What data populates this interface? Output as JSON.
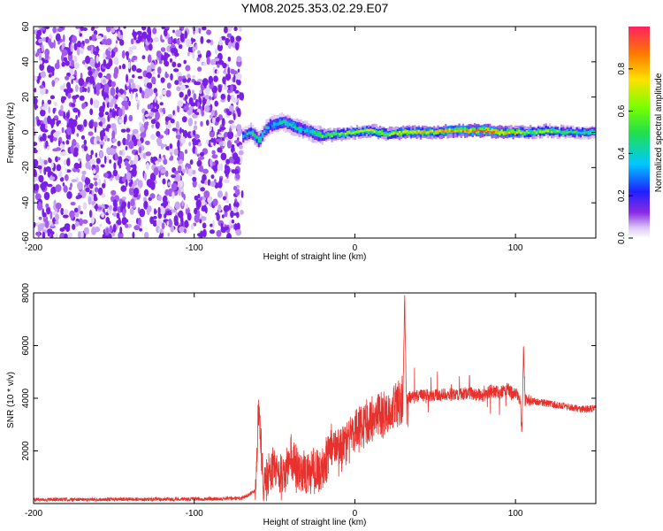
{
  "title": "YM08.2025.353.02.29.E07",
  "chart_data": [
    {
      "type": "heatmap",
      "name": "spectrogram",
      "xlabel": "Height of straight line (km)",
      "ylabel": "Frequency (Hz)",
      "xlim": [
        -200,
        150
      ],
      "ylim": [
        -60,
        60
      ],
      "xticks": [
        -200,
        -100,
        0,
        100
      ],
      "xtick_labels": [
        "-200",
        "-100",
        "0",
        "100"
      ],
      "yticks": [
        -60,
        -40,
        -20,
        0,
        20,
        40,
        60
      ],
      "ytick_labels": [
        "-60",
        "-40",
        "-20",
        "0",
        "20",
        "40",
        "60"
      ],
      "noise_region_km": [
        -200,
        -70
      ],
      "signal_track": [
        {
          "km": -70,
          "hz": -2,
          "amp": 0.3
        },
        {
          "km": -65,
          "hz": 0,
          "amp": 0.4
        },
        {
          "km": -60,
          "hz": -5,
          "amp": 0.45
        },
        {
          "km": -55,
          "hz": 3,
          "amp": 0.35
        },
        {
          "km": -50,
          "hz": 5,
          "amp": 0.4
        },
        {
          "km": -45,
          "hz": 6,
          "amp": 0.45
        },
        {
          "km": -40,
          "hz": 4,
          "amp": 0.4
        },
        {
          "km": -35,
          "hz": 2,
          "amp": 0.45
        },
        {
          "km": -30,
          "hz": 1,
          "amp": 0.4
        },
        {
          "km": -25,
          "hz": -1,
          "amp": 0.45
        },
        {
          "km": -20,
          "hz": -2,
          "amp": 0.5
        },
        {
          "km": -10,
          "hz": -1,
          "amp": 0.55
        },
        {
          "km": 0,
          "hz": 0,
          "amp": 0.6
        },
        {
          "km": 10,
          "hz": 1,
          "amp": 0.65
        },
        {
          "km": 20,
          "hz": -1,
          "amp": 0.6
        },
        {
          "km": 30,
          "hz": 0,
          "amp": 0.7
        },
        {
          "km": 40,
          "hz": 0,
          "amp": 0.75
        },
        {
          "km": 50,
          "hz": 0,
          "amp": 0.7
        },
        {
          "km": 60,
          "hz": 1,
          "amp": 0.8
        },
        {
          "km": 70,
          "hz": 1,
          "amp": 0.85
        },
        {
          "km": 80,
          "hz": 1,
          "amp": 0.95
        },
        {
          "km": 90,
          "hz": 0,
          "amp": 0.8
        },
        {
          "km": 100,
          "hz": 0,
          "amp": 0.7
        },
        {
          "km": 110,
          "hz": 0,
          "amp": 0.55
        },
        {
          "km": 120,
          "hz": 1,
          "amp": 0.6
        },
        {
          "km": 130,
          "hz": 0,
          "amp": 0.5
        },
        {
          "km": 140,
          "hz": 0,
          "amp": 0.45
        },
        {
          "km": 150,
          "hz": 0,
          "amp": 0.45
        }
      ],
      "colorbar": {
        "label": "Normalized spectral amplitude",
        "range": [
          0,
          1
        ],
        "ticks": [
          0.0,
          0.2,
          0.4,
          0.6,
          0.8
        ],
        "tick_labels": [
          "0.0",
          "0.2",
          "0.4",
          "0.6",
          "0.8"
        ]
      }
    },
    {
      "type": "line",
      "name": "snr",
      "xlabel": "Height of straight line (km)",
      "ylabel": "SNR (10 * v/v)",
      "xlim": [
        -200,
        150
      ],
      "ylim": [
        0,
        8000
      ],
      "xticks": [
        -200,
        -100,
        0,
        100
      ],
      "xtick_labels": [
        "-200",
        "-100",
        "0",
        "100"
      ],
      "yticks": [
        2000,
        4000,
        6000,
        8000
      ],
      "ytick_labels": [
        "2000",
        "4000",
        "6000",
        "8000"
      ],
      "series": [
        {
          "name": "SNR",
          "color": "#e8312c",
          "x": [
            -200,
            -150,
            -100,
            -70,
            -62,
            -60,
            -57,
            -55,
            -50,
            -45,
            -40,
            -35,
            -30,
            -25,
            -20,
            -15,
            -10,
            -5,
            0,
            5,
            10,
            15,
            20,
            25,
            28,
            30,
            31,
            32,
            35,
            40,
            50,
            60,
            70,
            80,
            85,
            90,
            95,
            100,
            103,
            104,
            105,
            106,
            110,
            120,
            130,
            140,
            150
          ],
          "y": [
            150,
            160,
            170,
            200,
            500,
            3700,
            700,
            1000,
            1300,
            900,
            1800,
            1200,
            1100,
            1300,
            1200,
            2200,
            1900,
            2300,
            2700,
            3000,
            3100,
            3300,
            3400,
            3700,
            3800,
            4000,
            7900,
            4100,
            4000,
            4100,
            4100,
            4150,
            4200,
            4100,
            4300,
            4200,
            4350,
            4150,
            4000,
            2500,
            6000,
            3900,
            3900,
            3800,
            3700,
            3600,
            3600
          ]
        }
      ]
    }
  ]
}
